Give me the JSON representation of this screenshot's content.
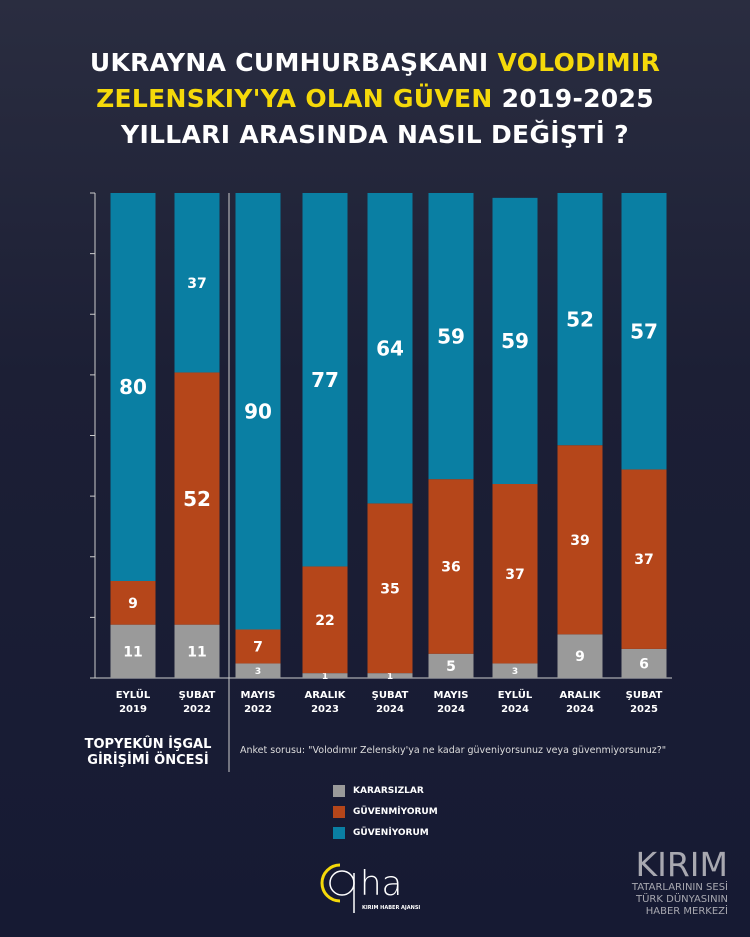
{
  "title": {
    "line1a": "UKRAYNA CUMHURBAŞKANI ",
    "line1b": "VOLODIMIR",
    "line2a": "ZELENSKIY'YA OLAN GÜVEN",
    "line2b": " 2019-2025",
    "line3": "YILLARI ARASINDA NASIL DEĞİŞTİ ?"
  },
  "note_left": {
    "l1": "TOPYEKÛN İŞGAL",
    "l2": "GİRİŞİMİ ÖNCESİ"
  },
  "question": "Anket sorusu: \"Volodımır Zelenskıy'ya ne kadar güveniyorsunuz veya güvenmiyorsunuz?\"",
  "colors": {
    "kararsizlar": "#9a9a9a",
    "guvenmiyorum": "#b5461a",
    "guveniyorum": "#0a7fa3",
    "accent": "#f5d90a"
  },
  "logo": {
    "text": "qha",
    "sub": "KIRIM HABER AJANSI"
  },
  "brand": {
    "big": "KIRIM",
    "l1": "TATARLARININ SESİ",
    "l2": "TÜRK DÜNYASININ",
    "l3": "HABER MERKEZİ"
  },
  "chart_data": {
    "type": "stacked-bar",
    "categories": [
      [
        "EYLÜL",
        "2019"
      ],
      [
        "ŞUBAT",
        "2022"
      ],
      [
        "MAYIS",
        "2022"
      ],
      [
        "ARALIK",
        "2023"
      ],
      [
        "ŞUBAT",
        "2024"
      ],
      [
        "MAYIS",
        "2024"
      ],
      [
        "EYLÜL",
        "2024"
      ],
      [
        "ARALIK",
        "2024"
      ],
      [
        "ŞUBAT",
        "2025"
      ]
    ],
    "series": [
      {
        "name": "KARARSIZLAR",
        "key": "kararsizlar",
        "values": [
          11,
          11,
          3,
          1,
          1,
          5,
          3,
          9,
          6
        ]
      },
      {
        "name": "GÜVENMİYORUM",
        "key": "guvenmiyorum",
        "values": [
          9,
          52,
          7,
          22,
          35,
          36,
          37,
          39,
          37
        ]
      },
      {
        "name": "GÜVENİYORUM",
        "key": "guveniyorum",
        "values": [
          80,
          37,
          90,
          77,
          64,
          59,
          59,
          52,
          57
        ]
      }
    ],
    "ylim": [
      0,
      100
    ],
    "legend": "bottom-center"
  }
}
